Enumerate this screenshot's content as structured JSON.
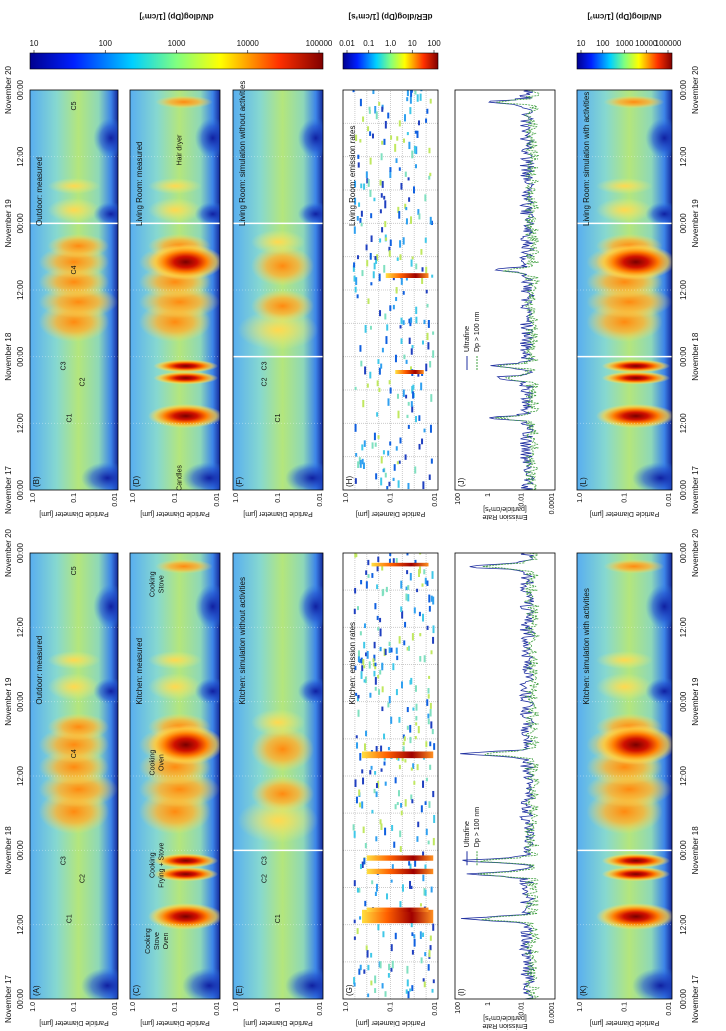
{
  "time_axis": {
    "ticks": [
      "00:00",
      "12:00",
      "00:00",
      "12:00",
      "00:00",
      "12:00",
      "00:00"
    ],
    "dates": [
      "November 17",
      "November 18",
      "November 19",
      "November 20"
    ]
  },
  "colorbars": [
    {
      "title": "dN/dlog(Dp) [1/cm³]",
      "ticks": [
        "10",
        "100",
        "1000",
        "10000",
        "100000"
      ]
    },
    {
      "title": "dER/dlog(Dp) [1/cm³s]",
      "ticks": [
        "0.01",
        "0.1",
        "1.0",
        "10",
        "100"
      ]
    },
    {
      "title": "dN/dlog(Dp) [1/cm³]",
      "ticks": [
        "10",
        "100",
        "1000",
        "10000",
        "100000"
      ]
    }
  ],
  "panels": [
    {
      "label": "(A)",
      "title": "Outdoor: measured",
      "y_label": [
        "Particle Diameter [µm]"
      ],
      "y_ticks": [
        "1.0",
        "0.1",
        "0.01"
      ],
      "annotations": [
        [
          "C1"
        ],
        [
          "C2"
        ],
        [
          "C3"
        ],
        [
          "C4"
        ],
        [
          "C5"
        ]
      ]
    },
    {
      "label": "(B)",
      "title": "Outdoor: measured",
      "y_label": [
        "Particle Diameter [µm]"
      ],
      "y_ticks": [
        "1.0",
        "0.1",
        "0.01"
      ],
      "annotations": [
        [
          "C1"
        ],
        [
          "C2"
        ],
        [
          "C3"
        ],
        [
          "C4"
        ],
        [
          "C5"
        ]
      ]
    },
    {
      "label": "(C)",
      "title": "Kitchen: measured",
      "y_label": [
        "Particle Diameter [µm]"
      ],
      "y_ticks": [
        "1.0",
        "0.1",
        "0.01"
      ],
      "annotations": [
        [
          "Cooking",
          "Stove",
          "Oven"
        ],
        [
          "Cooking",
          "Frying + Stove"
        ],
        [
          "Cooking",
          "Oven"
        ],
        [
          "Cooking",
          "Stove"
        ]
      ]
    },
    {
      "label": "(D)",
      "title": "Living Room: measured",
      "y_label": [
        "Particle Diameter [µm]"
      ],
      "y_ticks": [
        "1.0",
        "0.1",
        "0.01"
      ],
      "annotations": [
        [
          "Candles"
        ],
        [
          "Hair dryer"
        ]
      ]
    },
    {
      "label": "(E)",
      "title": "Kitchen: simulation without activities",
      "y_label": [
        "Particle Diameter [µm]"
      ],
      "y_ticks": [
        "1.0",
        "0.1",
        "0.01"
      ],
      "annotations": [
        [
          "C1"
        ],
        [
          "C2"
        ],
        [
          "C3"
        ]
      ]
    },
    {
      "label": "(F)",
      "title": "Living Room: simulation without activities",
      "y_label": [
        "Particle Diameter [µm]"
      ],
      "y_ticks": [
        "1.0",
        "0.1",
        "0.01"
      ],
      "annotations": [
        [
          "C1"
        ],
        [
          "C2"
        ],
        [
          "C3"
        ]
      ]
    },
    {
      "label": "(G)",
      "title": "Kitchen: emission rates",
      "y_label": [
        "Particle Diameter [µm]"
      ],
      "y_ticks": [
        "1.0",
        "0.1",
        "0.01"
      ],
      "annotations": []
    },
    {
      "label": "(H)",
      "title": "Living Room: emission rates",
      "y_label": [
        "Particle Diameter [µm]"
      ],
      "y_ticks": [
        "1.0",
        "0.1",
        "0.01"
      ],
      "annotations": []
    },
    {
      "label": "(I)",
      "y_label": [
        "Emission Rate",
        "[particle/cm³s]"
      ],
      "y_ticks": [
        "100",
        "1",
        "0.01",
        "0.0001"
      ],
      "legend": [
        "Ultrafine",
        "Dp > 100 nm"
      ],
      "annotations": []
    },
    {
      "label": "(J)",
      "y_label": [
        "Emission Rate",
        "[particle/cm³s]"
      ],
      "y_ticks": [
        "100",
        "1",
        "0.01",
        "0.0001"
      ],
      "legend": [
        "Ultrafine",
        "Dp > 100 nm"
      ],
      "annotations": []
    },
    {
      "label": "(K)",
      "title": "Kitchen: simulation with activities",
      "y_label": [
        "Particle Diameter [µm]"
      ],
      "y_ticks": [
        "1.0",
        "0.1",
        "0.01"
      ],
      "annotations": []
    },
    {
      "label": "(L)",
      "title": "Living Room: simulation with activities",
      "y_label": [
        "Particle Diameter [µm]"
      ],
      "y_ticks": [
        "1.0",
        "0.1",
        "0.01"
      ],
      "annotations": []
    }
  ]
}
